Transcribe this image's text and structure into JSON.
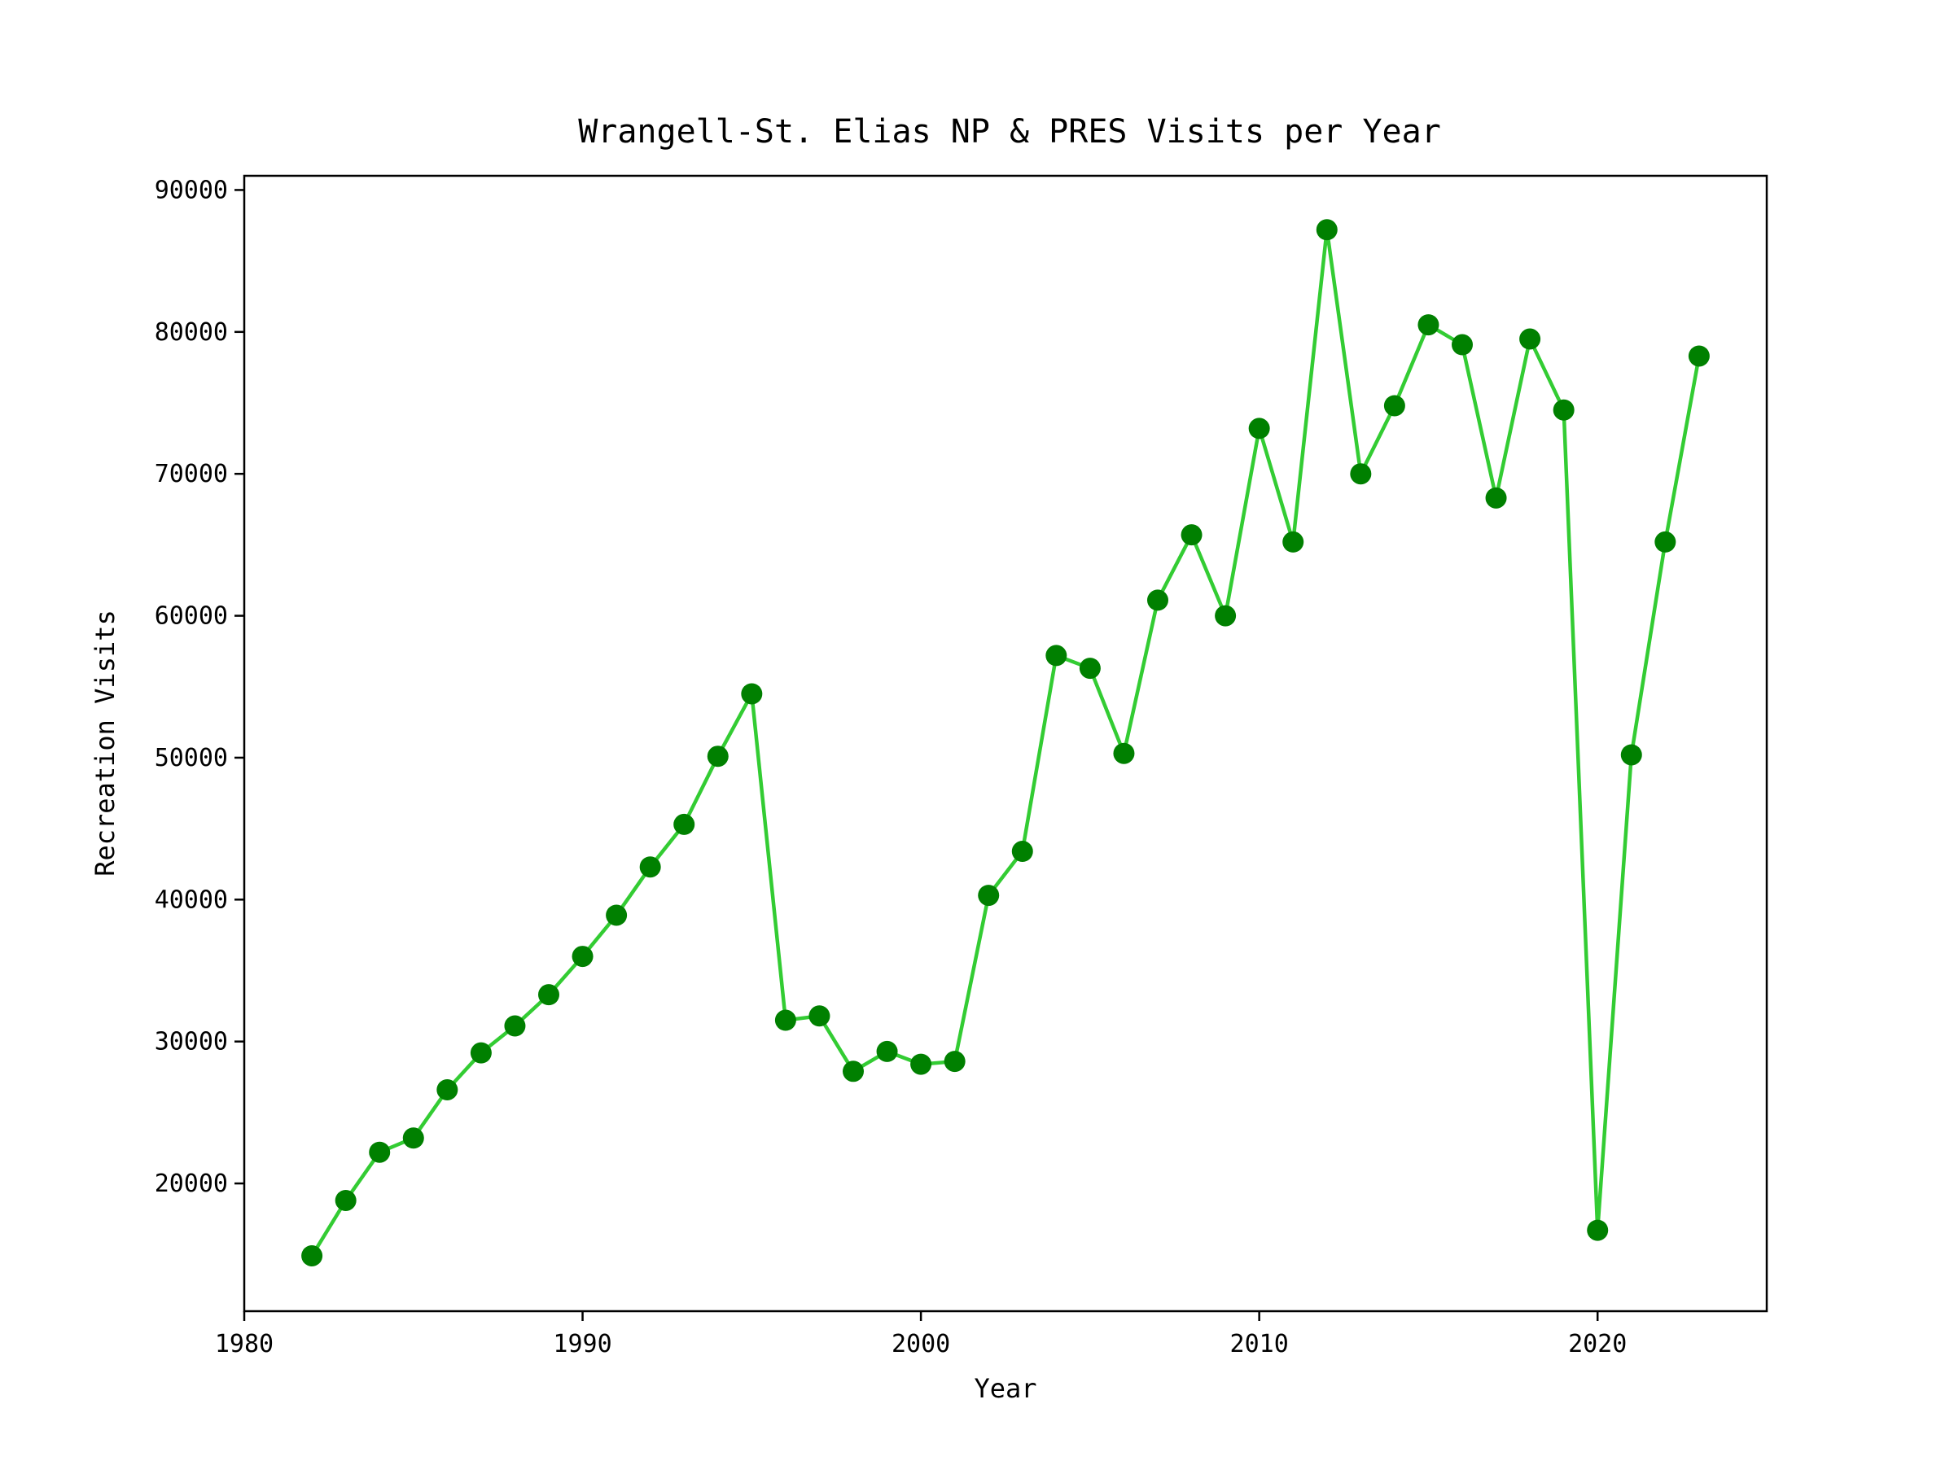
{
  "chart_data": {
    "type": "line",
    "title": "Wrangell-St. Elias NP & PRES Visits per Year",
    "xlabel": "Year",
    "ylabel": "Recreation Visits",
    "xlim": [
      1980,
      2025
    ],
    "ylim": [
      11000,
      91000
    ],
    "x_ticks": [
      1980,
      1990,
      2000,
      2010,
      2020
    ],
    "y_ticks": [
      20000,
      30000,
      40000,
      50000,
      60000,
      70000,
      80000,
      90000
    ],
    "grid": false,
    "legend": "none",
    "line_color": "#33cc33",
    "marker_color": "#008000",
    "series": [
      {
        "x": [
          1982,
          1983,
          1984,
          1985,
          1986,
          1987,
          1988,
          1989,
          1990,
          1991,
          1992,
          1993,
          1994,
          1995,
          1996,
          1997,
          1998,
          1999,
          2000,
          2001,
          2002,
          2003,
          2004,
          2005,
          2006,
          2007,
          2008,
          2009,
          2010,
          2011,
          2012,
          2013,
          2014,
          2015,
          2016,
          2017,
          2018,
          2019,
          2020,
          2021,
          2022,
          2023
        ],
        "values": [
          14900,
          18800,
          22200,
          23200,
          26600,
          29200,
          31100,
          33300,
          36000,
          38900,
          42300,
          45300,
          50100,
          54500,
          31500,
          31800,
          27900,
          29300,
          28400,
          28600,
          40300,
          43400,
          57200,
          56300,
          50300,
          61100,
          65700,
          60000,
          73200,
          65200,
          87200,
          70000,
          74800,
          80500,
          79100,
          68300,
          79500,
          74500,
          16700,
          50200,
          65200,
          78300
        ]
      }
    ]
  }
}
